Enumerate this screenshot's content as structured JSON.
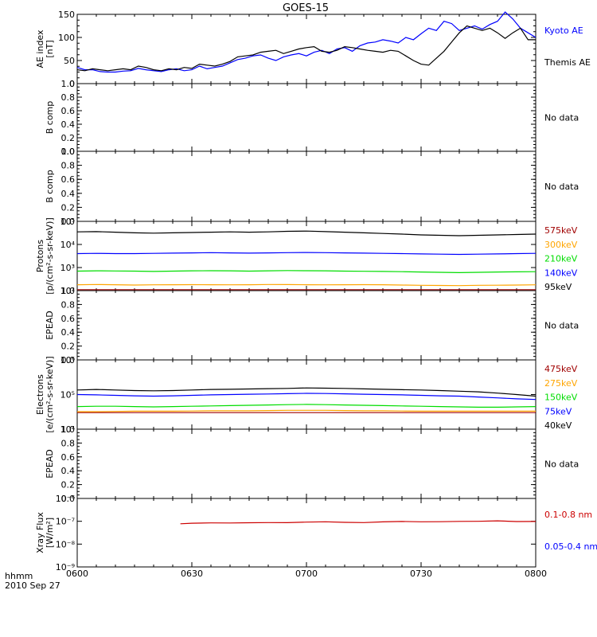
{
  "title": "GOES-15",
  "time_axis_label": "hhmm",
  "date_label": "2010 Sep 27",
  "x_ticks": [
    "0600",
    "0630",
    "0700",
    "0730",
    "0800"
  ],
  "no_data_text": "No data",
  "colors": {
    "axis": "#000000",
    "black": "#000000",
    "blue": "#0000ff",
    "green": "#00dd00",
    "orange": "#ffa500",
    "red": "#cc0000",
    "darkred": "#a00000"
  },
  "chart_data": [
    {
      "panel": "ae",
      "type": "line",
      "ylabel_lines": [
        "AE index",
        "[nT]"
      ],
      "ylim": [
        0,
        150
      ],
      "yticks": [
        "0",
        "50",
        "100",
        "150"
      ],
      "x": [
        0,
        2,
        4,
        6,
        8,
        10,
        12,
        14,
        16,
        18,
        20,
        22,
        24,
        26,
        28,
        30,
        32,
        34,
        36,
        38,
        40,
        42,
        44,
        46,
        48,
        50,
        52,
        54,
        56,
        58,
        60,
        62,
        64,
        66,
        68,
        70,
        72,
        74,
        76,
        78,
        80,
        82,
        84,
        86,
        88,
        90,
        92,
        94,
        96,
        98,
        100,
        102,
        104,
        106,
        108,
        110,
        112,
        114,
        116,
        118,
        120
      ],
      "series": [
        {
          "name": "Kyoto AE",
          "color": "#0000ff",
          "values": [
            35,
            30,
            30,
            26,
            25,
            25,
            27,
            28,
            33,
            30,
            28,
            26,
            30,
            32,
            28,
            30,
            38,
            32,
            35,
            38,
            45,
            52,
            55,
            60,
            62,
            55,
            50,
            58,
            62,
            65,
            60,
            68,
            72,
            65,
            75,
            78,
            70,
            82,
            88,
            90,
            95,
            92,
            88,
            100,
            95,
            108,
            120,
            115,
            135,
            130,
            115,
            120,
            125,
            118,
            128,
            135,
            155,
            140,
            120,
            110,
            100
          ]
        },
        {
          "name": "Themis AE",
          "color": "#000000",
          "values": [
            30,
            28,
            32,
            30,
            28,
            30,
            32,
            30,
            38,
            35,
            30,
            28,
            32,
            30,
            35,
            33,
            42,
            40,
            38,
            42,
            48,
            58,
            60,
            62,
            68,
            70,
            72,
            65,
            70,
            75,
            78,
            80,
            70,
            68,
            72,
            80,
            78,
            75,
            72,
            70,
            68,
            72,
            70,
            60,
            50,
            42,
            40,
            55,
            70,
            90,
            110,
            125,
            120,
            115,
            120,
            110,
            98,
            110,
            120,
            95,
            95
          ]
        }
      ]
    },
    {
      "panel": "bcomp1",
      "type": "line",
      "ylabel_lines": [
        "B comp"
      ],
      "ylim": [
        0,
        1
      ],
      "yticks": [
        "0.0",
        "0.2",
        "0.4",
        "0.6",
        "0.8",
        "1.0"
      ],
      "series": []
    },
    {
      "panel": "bcomp2",
      "type": "line",
      "ylabel_lines": [
        "B comp"
      ],
      "ylim": [
        0,
        1
      ],
      "yticks": [
        "0.0",
        "0.2",
        "0.4",
        "0.6",
        "0.8",
        "1.0"
      ],
      "series": []
    },
    {
      "panel": "protons",
      "type": "line",
      "log": true,
      "ylabel_lines": [
        "Protons",
        "[p/(cm²-s-sr-keV)]"
      ],
      "ylim": [
        100,
        100000
      ],
      "yticks": [
        "10²",
        "10³",
        "10⁴",
        "10⁵"
      ],
      "x": [
        0,
        5,
        10,
        15,
        20,
        25,
        30,
        35,
        40,
        45,
        50,
        55,
        60,
        65,
        70,
        75,
        80,
        85,
        90,
        95,
        100,
        105,
        110,
        115,
        120
      ],
      "series": [
        {
          "name": "575keV",
          "color": "#a00000",
          "values": [
            110,
            110,
            110,
            110,
            110,
            110,
            110,
            110,
            110,
            110,
            110,
            110,
            110,
            110,
            110,
            110,
            110,
            110,
            110,
            110,
            110,
            110,
            110,
            110,
            110
          ]
        },
        {
          "name": "300keV",
          "color": "#ffa500",
          "values": [
            180,
            185,
            180,
            175,
            178,
            180,
            182,
            180,
            178,
            180,
            185,
            183,
            180,
            178,
            180,
            182,
            180,
            175,
            170,
            168,
            165,
            170,
            172,
            175,
            178
          ]
        },
        {
          "name": "210keV",
          "color": "#00dd00",
          "values": [
            700,
            720,
            710,
            700,
            680,
            700,
            720,
            730,
            720,
            700,
            720,
            740,
            730,
            720,
            700,
            690,
            680,
            660,
            640,
            620,
            600,
            620,
            640,
            650,
            660
          ]
        },
        {
          "name": "140keV",
          "color": "#0000ff",
          "values": [
            4000,
            4100,
            4000,
            4000,
            4100,
            4200,
            4300,
            4400,
            4300,
            4200,
            4300,
            4400,
            4500,
            4400,
            4300,
            4200,
            4100,
            4000,
            3900,
            3800,
            3700,
            3800,
            3900,
            4000,
            4100
          ]
        },
        {
          "name": "95keV",
          "color": "#000000",
          "values": [
            35000,
            36000,
            34000,
            32000,
            31000,
            32000,
            33000,
            34000,
            35000,
            34000,
            35000,
            37000,
            38000,
            36000,
            34000,
            32000,
            30000,
            28000,
            26000,
            25000,
            24000,
            25000,
            26000,
            27000,
            28000
          ]
        }
      ]
    },
    {
      "panel": "epead1",
      "type": "line",
      "ylabel_lines": [
        "EPEAD"
      ],
      "ylim": [
        0,
        1
      ],
      "yticks": [
        "0.0",
        "0.2",
        "0.4",
        "0.6",
        "0.8",
        "1.0"
      ],
      "series": []
    },
    {
      "panel": "electrons",
      "type": "line",
      "log": true,
      "ylabel_lines": [
        "Electrons",
        "[e/(cm²-s-sr-keV)]"
      ],
      "ylim": [
        10000,
        1000000
      ],
      "yticks": [
        "10⁴",
        "10⁵",
        "10⁶"
      ],
      "x": [
        0,
        5,
        10,
        15,
        20,
        25,
        30,
        35,
        40,
        45,
        50,
        55,
        60,
        65,
        70,
        75,
        80,
        85,
        90,
        95,
        100,
        105,
        110,
        115,
        120
      ],
      "series": [
        {
          "name": "475keV",
          "color": "#a00000",
          "values": [
            30000,
            30000,
            30000,
            30000,
            30000,
            30000,
            30000,
            30000,
            30000,
            30000,
            30000,
            30000,
            30000,
            30000,
            30000,
            30000,
            30000,
            30000,
            30000,
            30000,
            30000,
            30000,
            30000,
            30000,
            30000
          ]
        },
        {
          "name": "275keV",
          "color": "#ffa500",
          "values": [
            32000,
            32000,
            32500,
            33000,
            33000,
            33000,
            33500,
            34000,
            34000,
            34000,
            34500,
            35000,
            35000,
            35000,
            34500,
            34000,
            34000,
            33500,
            33000,
            33000,
            33000,
            33000,
            33000,
            33000,
            33000
          ]
        },
        {
          "name": "150keV",
          "color": "#00dd00",
          "values": [
            45000,
            46000,
            46000,
            45000,
            44000,
            45000,
            46000,
            47000,
            48000,
            49000,
            50000,
            51000,
            52000,
            51000,
            50000,
            49000,
            48000,
            47000,
            46000,
            45000,
            44000,
            43000,
            43000,
            44000,
            45000
          ]
        },
        {
          "name": "75keV",
          "color": "#0000ff",
          "values": [
            100000,
            98000,
            95000,
            92000,
            90000,
            92000,
            95000,
            98000,
            100000,
            102000,
            104000,
            106000,
            108000,
            107000,
            105000,
            102000,
            100000,
            98000,
            95000,
            92000,
            90000,
            85000,
            80000,
            75000,
            72000
          ]
        },
        {
          "name": "40keV",
          "color": "#000000",
          "values": [
            135000,
            140000,
            135000,
            130000,
            128000,
            130000,
            135000,
            140000,
            142000,
            145000,
            148000,
            150000,
            155000,
            153000,
            150000,
            146000,
            142000,
            138000,
            135000,
            130000,
            125000,
            120000,
            110000,
            100000,
            90000
          ]
        }
      ]
    },
    {
      "panel": "epead2",
      "type": "line",
      "ylabel_lines": [
        "EPEAD"
      ],
      "ylim": [
        0,
        1
      ],
      "yticks": [
        "0.0",
        "0.2",
        "0.4",
        "0.6",
        "0.8",
        "1.0"
      ],
      "series": []
    },
    {
      "panel": "xray",
      "type": "line",
      "log": true,
      "ylabel_lines": [
        "Xray Flux",
        "[W/m²]"
      ],
      "ylim": [
        1e-09,
        1e-06
      ],
      "yticks": [
        "10⁻⁹",
        "10⁻⁸",
        "10⁻⁷",
        "10⁻⁶"
      ],
      "series": [
        {
          "name": "0.1-0.8 nm",
          "color": "#cc0000",
          "x": [
            27,
            30,
            35,
            40,
            45,
            50,
            55,
            60,
            65,
            70,
            75,
            80,
            85,
            90,
            95,
            100,
            105,
            110,
            115,
            120
          ],
          "values": [
            7.8e-08,
            8.2e-08,
            8.5e-08,
            8.4e-08,
            8.6e-08,
            8.8e-08,
            8.7e-08,
            9.2e-08,
            9.5e-08,
            9e-08,
            8.8e-08,
            9.4e-08,
            9.8e-08,
            9.5e-08,
            9.6e-08,
            9.9e-08,
            1e-07,
            1.05e-07,
            9.7e-08,
            9.8e-08
          ]
        },
        {
          "name": "0.05-0.4 nm",
          "color": "#0000ff",
          "x": [],
          "values": []
        }
      ]
    }
  ]
}
